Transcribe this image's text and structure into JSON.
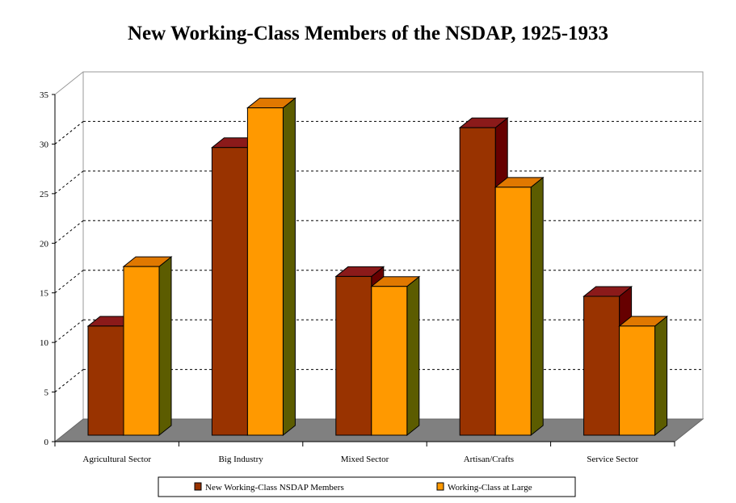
{
  "chart_data": {
    "type": "bar",
    "title": "New Working-Class Members of the NSDAP, 1925-1933",
    "xlabel": "",
    "ylabel": "",
    "ylim": [
      0,
      35
    ],
    "yticks": [
      0,
      5,
      10,
      15,
      20,
      25,
      30,
      35
    ],
    "grid": true,
    "legend_position": "bottom",
    "categories": [
      "Agricultural Sector",
      "Big Industry",
      "Mixed Sector",
      "Artisan/Crafts",
      "Service Sector"
    ],
    "series": [
      {
        "name": "New Working-Class NSDAP Members",
        "values": [
          11,
          29,
          16,
          31,
          14
        ],
        "color": "#993300",
        "top_color": "#8b1a1a",
        "side_color": "#660000"
      },
      {
        "name": "Working-Class at Large",
        "values": [
          17,
          33,
          15,
          25,
          11
        ],
        "color": "#ff9900",
        "top_color": "#e07800",
        "side_color": "#5c5c00"
      }
    ]
  }
}
